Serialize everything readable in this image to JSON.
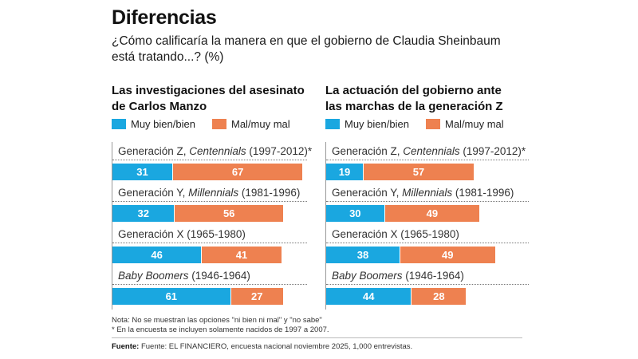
{
  "title": "Diferencias",
  "subtitle": "¿Cómo calificaría la manera en que el gobierno de Claudia Sheinbaum está tratando...? (%)",
  "colors": {
    "blue": "#1aa7e0",
    "orange": "#ee8150"
  },
  "legend": {
    "positive": "Muy bien/bien",
    "negative": "Mal/muy mal"
  },
  "categories": [
    {
      "prefix": "Generación Z, ",
      "italic": "Centennials",
      "suffix": " (1997-2012)*"
    },
    {
      "prefix": "Generación Y, ",
      "italic": "Millennials",
      "suffix": " (1981-1996)"
    },
    {
      "prefix": "Generación X (1965-1980)",
      "italic": "",
      "suffix": ""
    },
    {
      "prefix": "",
      "italic": "Baby Boomers",
      "suffix": " (1946-1964)"
    }
  ],
  "chart_data": [
    {
      "type": "bar",
      "orientation": "horizontal",
      "stacked": true,
      "title": "Las investigaciones del asesinato de Carlos Manzo",
      "categories": [
        "Generación Z, Centennials (1997-2012)*",
        "Generación Y, Millennials (1981-1996)",
        "Generación X (1965-1980)",
        "Baby Boomers (1946-1964)"
      ],
      "series": [
        {
          "name": "Muy bien/bien",
          "values": [
            31,
            32,
            46,
            61
          ]
        },
        {
          "name": "Mal/muy mal",
          "values": [
            67,
            56,
            41,
            27
          ]
        }
      ],
      "xlim": [
        0,
        100
      ],
      "unit": "%"
    },
    {
      "type": "bar",
      "orientation": "horizontal",
      "stacked": true,
      "title": "La actuación del gobierno ante las marchas de la generación Z",
      "categories": [
        "Generación Z, Centennials (1997-2012)*",
        "Generación Y, Millennials (1981-1996)",
        "Generación X (1965-1980)",
        "Baby Boomers (1946-1964)"
      ],
      "series": [
        {
          "name": "Muy bien/bien",
          "values": [
            19,
            30,
            38,
            44
          ]
        },
        {
          "name": "Mal/muy mal",
          "values": [
            57,
            49,
            49,
            28
          ]
        }
      ],
      "xlim": [
        0,
        100
      ],
      "unit": "%"
    }
  ],
  "notes": {
    "note1": "Nota: No se muestran las opciones \"ni bien ni mal\" y \"no sabe\"",
    "note2": "* En la encuesta se incluyen solamente nacidos de 1997 a 2007.",
    "source_label": "Fuente:",
    "source_text": " Fuente: EL FINANCIERO, encuesta nacional noviembre 2025, 1,000 entrevistas."
  }
}
